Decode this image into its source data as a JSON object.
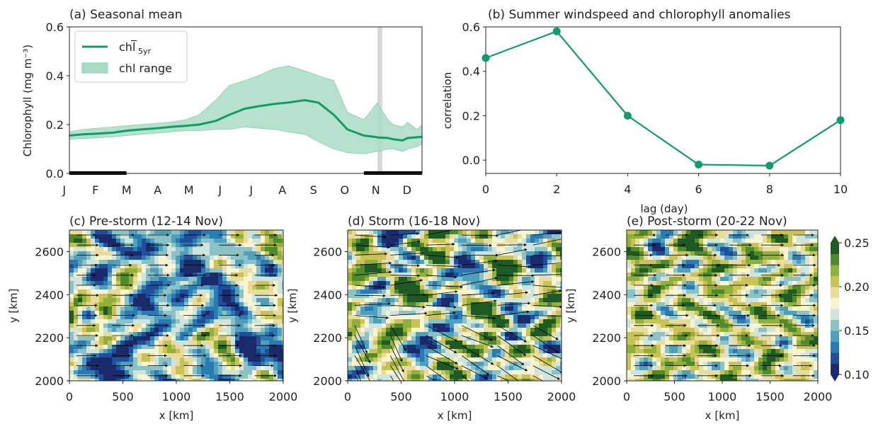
{
  "colors": {
    "green": "#109c6a",
    "fill": "#a9dcc6",
    "text": "#222222",
    "shade": "#bdbdbd",
    "colormap": [
      "#1b2a6b",
      "#1f4e9a",
      "#2a7ab3",
      "#4fa0bd",
      "#8ac2c6",
      "#cfe4dc",
      "#f7f4d2",
      "#e9dc9a",
      "#c8c257",
      "#8fb03b",
      "#4f8b2c",
      "#1f5a24"
    ]
  },
  "chart_data": [
    {
      "id": "a",
      "type": "line",
      "title": "(a) Seasonal mean",
      "ylabel": "Chlorophyll (mg m⁻³)",
      "ylim": [
        0,
        0.6
      ],
      "yticks": [
        "0.0",
        "0.2",
        "0.4",
        "0.6"
      ],
      "months": [
        "J",
        "F",
        "M",
        "A",
        "M",
        "J",
        "J",
        "A",
        "S",
        "O",
        "N",
        "D"
      ],
      "legend": [
        "chl̅",
        "5yr",
        "chl range"
      ],
      "legend_position": "top-left",
      "doy": [
        1,
        15,
        30,
        46,
        60,
        75,
        91,
        105,
        121,
        135,
        152,
        166,
        182,
        196,
        213,
        227,
        244,
        258,
        274,
        288,
        305,
        319,
        320,
        330,
        335,
        345,
        350,
        360,
        365
      ],
      "mean": [
        0.155,
        0.16,
        0.163,
        0.167,
        0.175,
        0.18,
        0.185,
        0.19,
        0.195,
        0.2,
        0.215,
        0.24,
        0.265,
        0.275,
        0.285,
        0.29,
        0.3,
        0.29,
        0.24,
        0.18,
        0.155,
        0.148,
        0.147,
        0.145,
        0.14,
        0.135,
        0.145,
        0.148,
        0.15
      ],
      "upper": [
        0.17,
        0.18,
        0.185,
        0.19,
        0.195,
        0.2,
        0.205,
        0.21,
        0.22,
        0.24,
        0.3,
        0.36,
        0.38,
        0.4,
        0.43,
        0.44,
        0.42,
        0.4,
        0.38,
        0.25,
        0.22,
        0.29,
        0.28,
        0.22,
        0.2,
        0.19,
        0.21,
        0.18,
        0.2
      ],
      "lower": [
        0.14,
        0.143,
        0.146,
        0.15,
        0.155,
        0.16,
        0.165,
        0.17,
        0.175,
        0.175,
        0.18,
        0.18,
        0.19,
        0.185,
        0.18,
        0.17,
        0.16,
        0.13,
        0.1,
        0.085,
        0.08,
        0.09,
        0.09,
        0.1,
        0.1,
        0.09,
        0.1,
        0.11,
        0.12
      ],
      "storm_window_doy": [
        319,
        324
      ],
      "winter_bars_doy": [
        [
          1,
          60
        ],
        [
          305,
          365
        ]
      ]
    },
    {
      "id": "b",
      "type": "line",
      "title": "(b) Summer windspeed and chlorophyll anomalies",
      "xlabel": "lag (day)",
      "ylabel": "correlation",
      "x": [
        0,
        2,
        4,
        6,
        8,
        10
      ],
      "y": [
        0.46,
        0.58,
        0.2,
        -0.02,
        -0.025,
        0.18
      ],
      "xlim": [
        0,
        10
      ],
      "ylim": [
        -0.06,
        0.6
      ],
      "xticks": [
        "0",
        "2",
        "4",
        "6",
        "8",
        "10"
      ],
      "yticks": [
        "0.0",
        "0.2",
        "0.4",
        "0.6"
      ]
    },
    {
      "id": "c",
      "type": "heatmap",
      "title": "(c) Pre-storm (12-14 Nov)",
      "xlabel": "x [km]",
      "ylabel": "y [km]",
      "xticks": [
        "0",
        "500",
        "1000",
        "1500",
        "2000"
      ],
      "yticks": [
        "2000",
        "2200",
        "2400",
        "2600"
      ],
      "xlim": [
        0,
        2000
      ],
      "ylim": [
        2000,
        2700
      ]
    },
    {
      "id": "d",
      "type": "heatmap",
      "title": "(d) Storm (16-18 Nov)",
      "xlabel": "x [km]",
      "ylabel": "y [km]",
      "xticks": [
        "0",
        "500",
        "1000",
        "1500",
        "2000"
      ],
      "yticks": [
        "2000",
        "2200",
        "2400",
        "2600"
      ],
      "xlim": [
        0,
        2000
      ],
      "ylim": [
        2000,
        2700
      ]
    },
    {
      "id": "e",
      "type": "heatmap",
      "title": "(e) Post-storm (20-22 Nov)",
      "xlabel": "x [km]",
      "ylabel": "y [km]",
      "xticks": [
        "0",
        "500",
        "1000",
        "1500",
        "2000"
      ],
      "yticks": [
        "2000",
        "2200",
        "2400",
        "2600"
      ],
      "xlim": [
        0,
        2000
      ],
      "ylim": [
        2000,
        2700
      ]
    }
  ],
  "colorbar": {
    "ticks": [
      "0.10",
      "0.15",
      "0.20",
      "0.25"
    ],
    "range": [
      0.1,
      0.25
    ]
  }
}
